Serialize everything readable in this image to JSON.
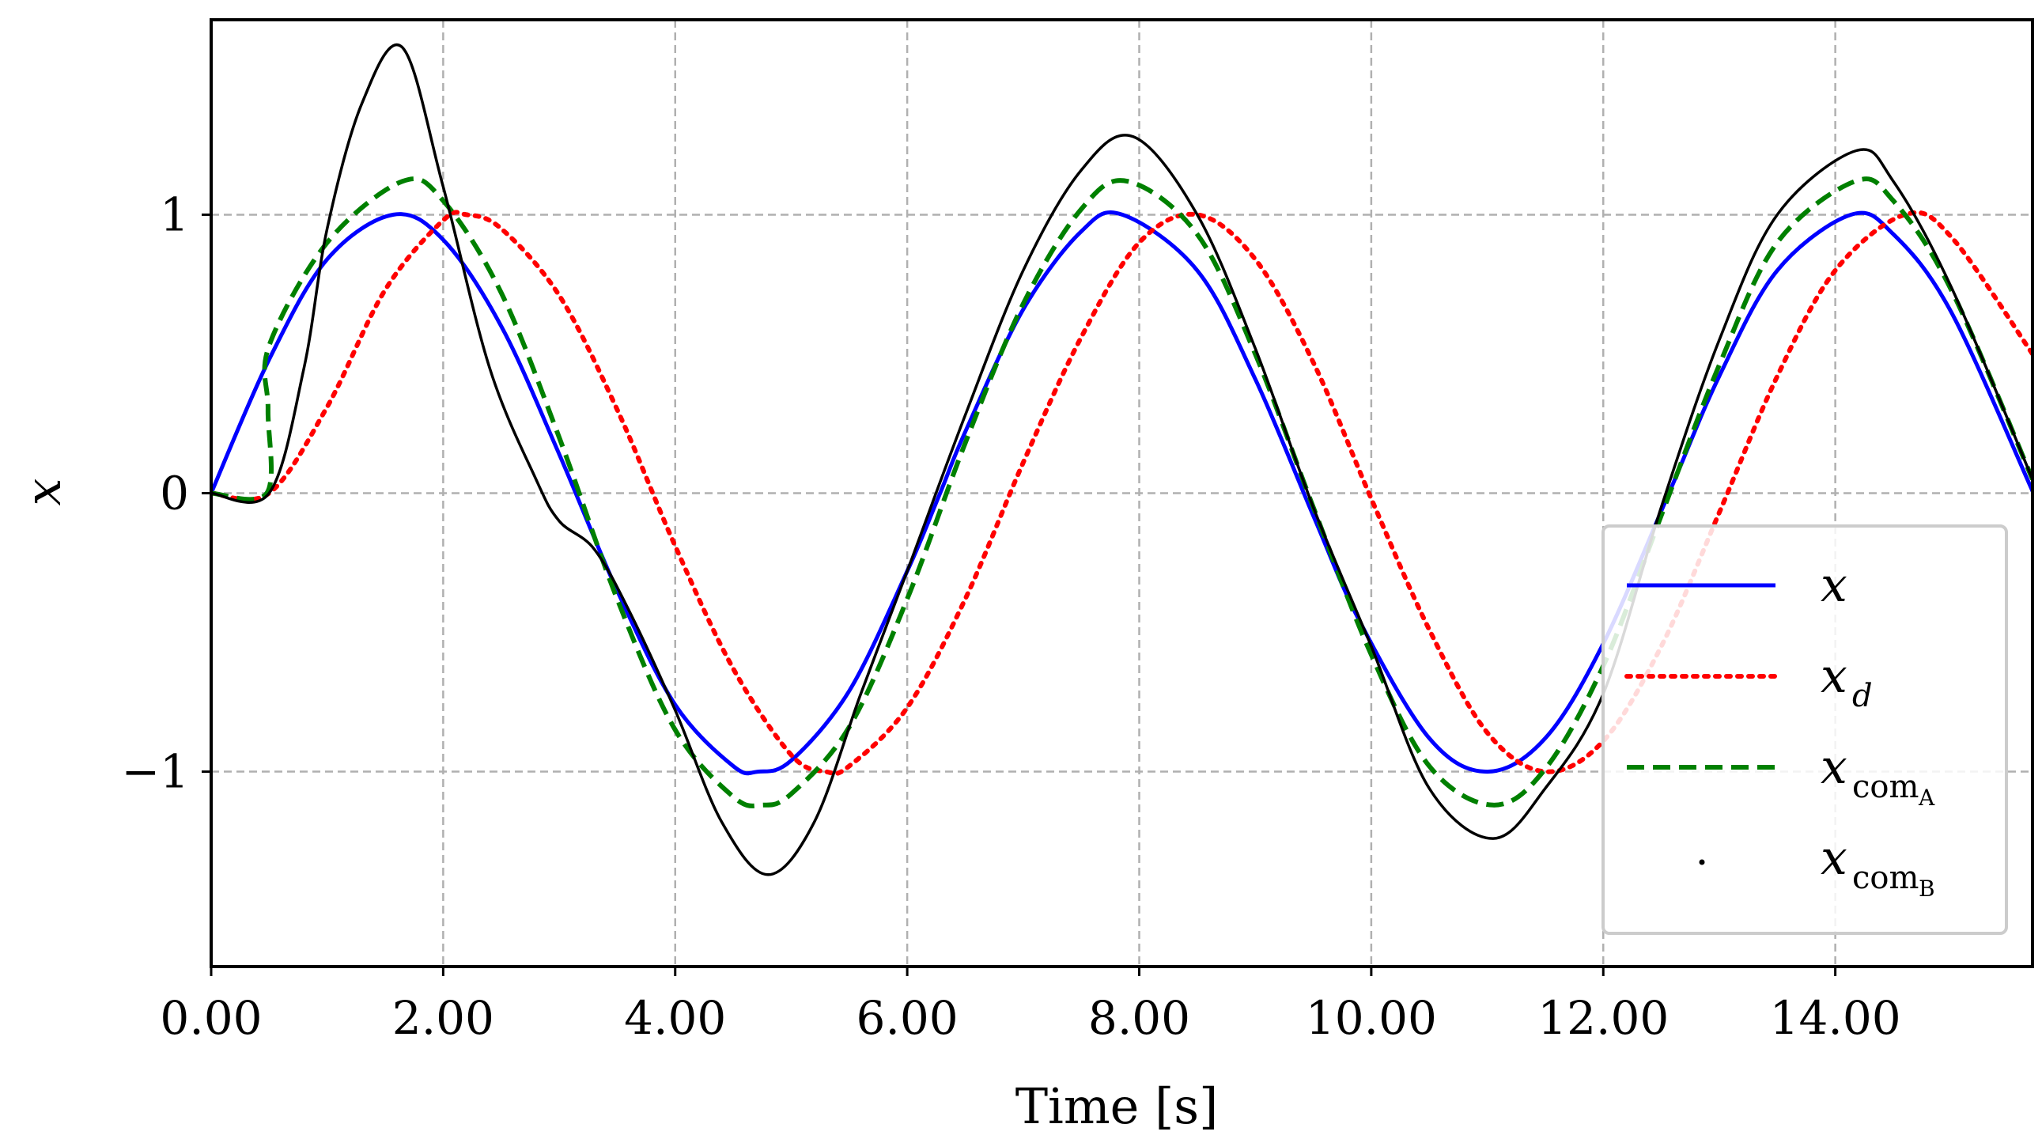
{
  "chart_data": {
    "type": "line",
    "title": "",
    "xlabel": "Time [s]",
    "ylabel": "x",
    "xlim": [
      0,
      15.7
    ],
    "ylim": [
      -1.7,
      1.7
    ],
    "xticks": [
      0,
      2,
      4,
      6,
      8,
      10,
      12,
      14
    ],
    "xtick_labels": [
      "0.00",
      "2.00",
      "4.00",
      "6.00",
      "8.00",
      "10.00",
      "12.00",
      "14.00"
    ],
    "yticks": [
      -1,
      0,
      1
    ],
    "ytick_labels": [
      "−1",
      "0",
      "1"
    ],
    "grid": true,
    "legend_position": "lower-right",
    "series": [
      {
        "name": "x",
        "legend_base": "x",
        "legend_sub": "",
        "legend_subsub": "",
        "color": "#0000ff",
        "style": "solid",
        "x": [
          0,
          0.5,
          1.0,
          1.5708,
          2.0,
          2.5,
          3.0,
          3.5,
          4.0,
          4.5,
          4.7124,
          5.0,
          5.5,
          6.0,
          6.2832,
          6.5,
          7.0,
          7.5,
          7.854,
          8.5,
          9.0,
          9.5,
          9.9,
          10.5,
          11.0,
          11.5,
          12.0,
          12.566,
          13.0,
          13.5,
          14.137,
          14.5,
          15.0,
          15.708
        ],
        "y": [
          0,
          0.48,
          0.84,
          1.0,
          0.91,
          0.6,
          0.14,
          -0.35,
          -0.76,
          -0.98,
          -1.0,
          -0.96,
          -0.71,
          -0.28,
          0,
          0.22,
          0.66,
          0.94,
          1.0,
          0.8,
          0.41,
          -0.08,
          -0.46,
          -0.88,
          -1.0,
          -0.88,
          -0.54,
          0,
          0.42,
          0.8,
          1.0,
          0.93,
          0.65,
          0
        ]
      },
      {
        "name": "x_d",
        "legend_base": "x",
        "legend_sub": "d",
        "legend_subsub": "",
        "color": "#ff0000",
        "style": "dotted",
        "x": [
          0,
          0.5,
          1.0,
          1.5,
          2.0,
          2.2,
          2.5,
          3.0,
          3.5,
          4.0,
          4.5,
          5.0,
          5.3,
          5.5,
          6.0,
          6.5,
          7.0,
          7.5,
          8.0,
          8.5,
          9.0,
          9.5,
          10.0,
          10.5,
          11.0,
          11.5,
          12.0,
          12.5,
          13.0,
          13.5,
          14.0,
          14.6,
          15.0,
          15.7
        ],
        "y": [
          0,
          0,
          0.31,
          0.73,
          0.98,
          1.0,
          0.95,
          0.71,
          0.3,
          -0.19,
          -0.63,
          -0.94,
          -1.0,
          -0.98,
          -0.77,
          -0.38,
          0.11,
          0.56,
          0.9,
          1.0,
          0.84,
          0.47,
          -0.02,
          -0.49,
          -0.86,
          -1.0,
          -0.89,
          -0.55,
          -0.07,
          0.42,
          0.8,
          1.0,
          0.92,
          0.5
        ]
      },
      {
        "name": "x_com_A",
        "legend_base": "x",
        "legend_sub": "com",
        "legend_subsub": "A",
        "color": "#008000",
        "style": "dashed",
        "x": [
          0,
          0.48,
          0.49,
          0.5,
          1.0,
          1.65,
          2.0,
          2.5,
          3.0,
          3.5,
          4.0,
          4.5,
          4.75,
          5.0,
          5.5,
          6.0,
          6.5,
          7.0,
          7.5,
          7.9,
          8.5,
          9.0,
          9.5,
          10.0,
          10.5,
          11.05,
          11.5,
          12.0,
          12.5,
          13.0,
          13.5,
          14.17,
          14.5,
          15.0,
          15.7
        ],
        "y": [
          0,
          0,
          0.3,
          0.53,
          0.9,
          1.12,
          1.05,
          0.72,
          0.2,
          -0.38,
          -0.85,
          -1.09,
          -1.12,
          -1.08,
          -0.84,
          -0.38,
          0.18,
          0.68,
          1.02,
          1.12,
          0.93,
          0.5,
          -0.05,
          -0.58,
          -0.98,
          -1.12,
          -0.99,
          -0.62,
          -0.08,
          0.46,
          0.9,
          1.12,
          1.05,
          0.73,
          0.05
        ]
      },
      {
        "name": "x_com_B",
        "legend_base": "x",
        "legend_sub": "com",
        "legend_subsub": "B",
        "color": "#000000",
        "style": "points",
        "x": [
          0,
          0.5,
          0.8,
          1.0,
          1.3,
          1.65,
          2.0,
          2.4,
          2.8,
          3.0,
          3.3,
          3.6,
          4.0,
          4.4,
          4.8,
          5.2,
          5.6,
          6.0,
          6.5,
          7.0,
          7.5,
          7.95,
          8.5,
          9.0,
          9.5,
          10.0,
          10.5,
          11.05,
          11.5,
          12.0,
          12.5,
          13.0,
          13.5,
          14.18,
          14.5,
          15.0,
          15.7
        ],
        "y": [
          0,
          0,
          0.45,
          0.95,
          1.4,
          1.6,
          1.1,
          0.45,
          0.05,
          -0.1,
          -0.2,
          -0.42,
          -0.78,
          -1.18,
          -1.37,
          -1.18,
          -0.72,
          -0.28,
          0.28,
          0.8,
          1.16,
          1.28,
          1.0,
          0.52,
          -0.05,
          -0.55,
          -1.06,
          -1.24,
          -1.06,
          -0.72,
          -0.05,
          0.55,
          1.0,
          1.23,
          1.12,
          0.74,
          0.05
        ]
      }
    ]
  }
}
